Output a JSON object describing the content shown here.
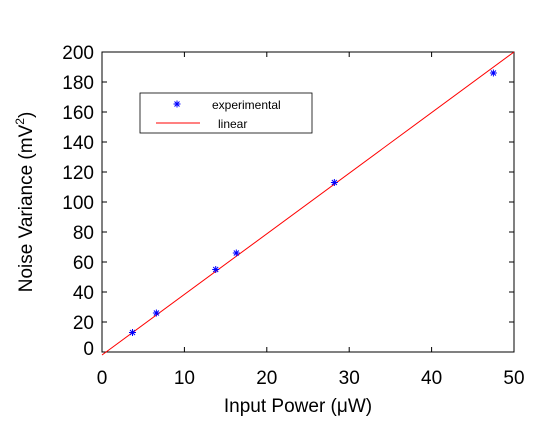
{
  "chart_data": {
    "type": "scatter",
    "xlabel": "Input Power (μW)",
    "ylabel_main": "Noise Variance (mV",
    "ylabel_sup": "2",
    "ylabel_close": ")",
    "xlim": [
      0,
      50
    ],
    "ylim": [
      0,
      200
    ],
    "x_ticks": [
      0,
      10,
      20,
      30,
      40,
      50
    ],
    "y_ticks": [
      0,
      20,
      40,
      60,
      80,
      100,
      120,
      140,
      160,
      180,
      200
    ],
    "grid": false,
    "legend_position": "upper-left",
    "series": [
      {
        "name": "experimental",
        "type": "scatter",
        "marker": "asterisk",
        "color": "#0000ff",
        "x": [
          3.7,
          6.6,
          13.8,
          16.3,
          28.2,
          47.5
        ],
        "y": [
          13,
          26,
          55,
          66,
          113,
          186
        ]
      },
      {
        "name": "linear",
        "type": "line",
        "color": "#ff0000",
        "x": [
          0,
          50
        ],
        "y": [
          -2,
          200
        ]
      }
    ]
  }
}
